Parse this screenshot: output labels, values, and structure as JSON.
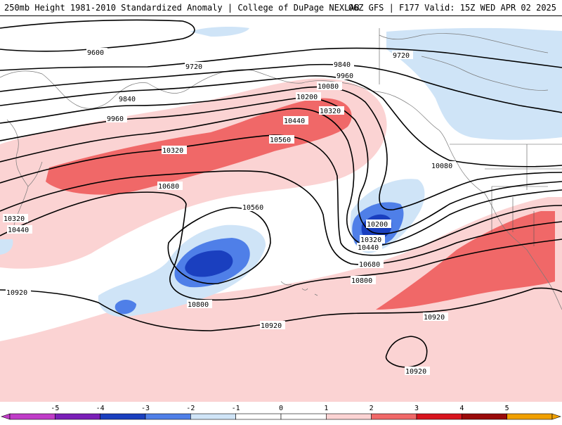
{
  "header": {
    "title_left": "250mb Height 1981-2010 Standardized Anomaly | College of DuPage NEXLAB",
    "title_right": "06Z GFS | F177 Valid: 15Z WED APR 02 2025"
  },
  "colors": {
    "anom_neg5": "#c03cc8",
    "anom_neg4": "#7a1fb8",
    "anom_neg3": "#1a3fbf",
    "anom_neg2": "#4f7fe8",
    "anom_neg1": "#cfe4f7",
    "anom_pos1": "#fbd3d3",
    "anom_pos2": "#f06868",
    "anom_pos3": "#d8141e",
    "anom_pos4": "#9a0a0a",
    "anom_pos5": "#f0a000",
    "contour": "#000000",
    "coastline": "#7a7a7a"
  },
  "contour_labels": [
    "9600",
    "9720",
    "9720",
    "9840",
    "9840",
    "9960",
    "9960",
    "10080",
    "10080",
    "10200",
    "10200",
    "10320",
    "10320",
    "10320",
    "10320",
    "10440",
    "10440",
    "10440",
    "10560",
    "10560",
    "10680",
    "10680",
    "10800",
    "10800",
    "10920",
    "10920",
    "10920",
    "10920"
  ],
  "colorbar": {
    "tick_labels": [
      "-5",
      "-4",
      "-3",
      "-2",
      "-1",
      "0",
      "1",
      "2",
      "3",
      "4",
      "5"
    ],
    "segment_colors": [
      "#c03cc8",
      "#7a1fb8",
      "#1a3fbf",
      "#4f7fe8",
      "#cfe4f7",
      "#ffffff",
      "#ffffff",
      "#fbd3d3",
      "#f06868",
      "#d8141e",
      "#9a0a0a",
      "#f0a000"
    ]
  }
}
